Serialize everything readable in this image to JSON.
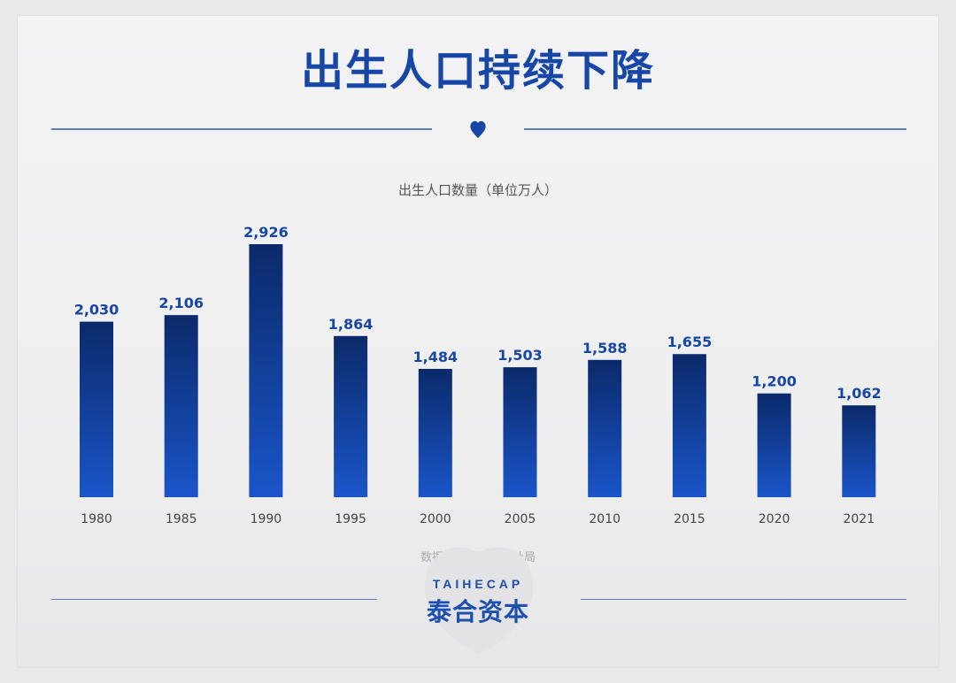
{
  "title": "出生人口持续下降",
  "source": "数据来源：国家统计局",
  "logo": {
    "en": "TAIHECAP",
    "cn": "泰合资本"
  },
  "colors": {
    "accent": "#1747a6",
    "bar_top": "#0b2a6a",
    "bar_bottom": "#1a55c9"
  },
  "icons": {
    "divider": "drop-icon"
  },
  "chart_data": {
    "type": "bar",
    "title": "出生人口数量（单位万人）",
    "categories": [
      "1980",
      "1985",
      "1990",
      "1995",
      "2000",
      "2005",
      "2010",
      "2015",
      "2020",
      "2021"
    ],
    "values": [
      2030,
      2106,
      2926,
      1864,
      1484,
      1503,
      1588,
      1655,
      1200,
      1062
    ],
    "value_labels": [
      "2,030",
      "2,106",
      "2,926",
      "1,864",
      "1,484",
      "1,503",
      "1,588",
      "1,655",
      "1,200",
      "1,062"
    ],
    "ylim": [
      0,
      3000
    ],
    "grid": false,
    "legend": "none"
  }
}
